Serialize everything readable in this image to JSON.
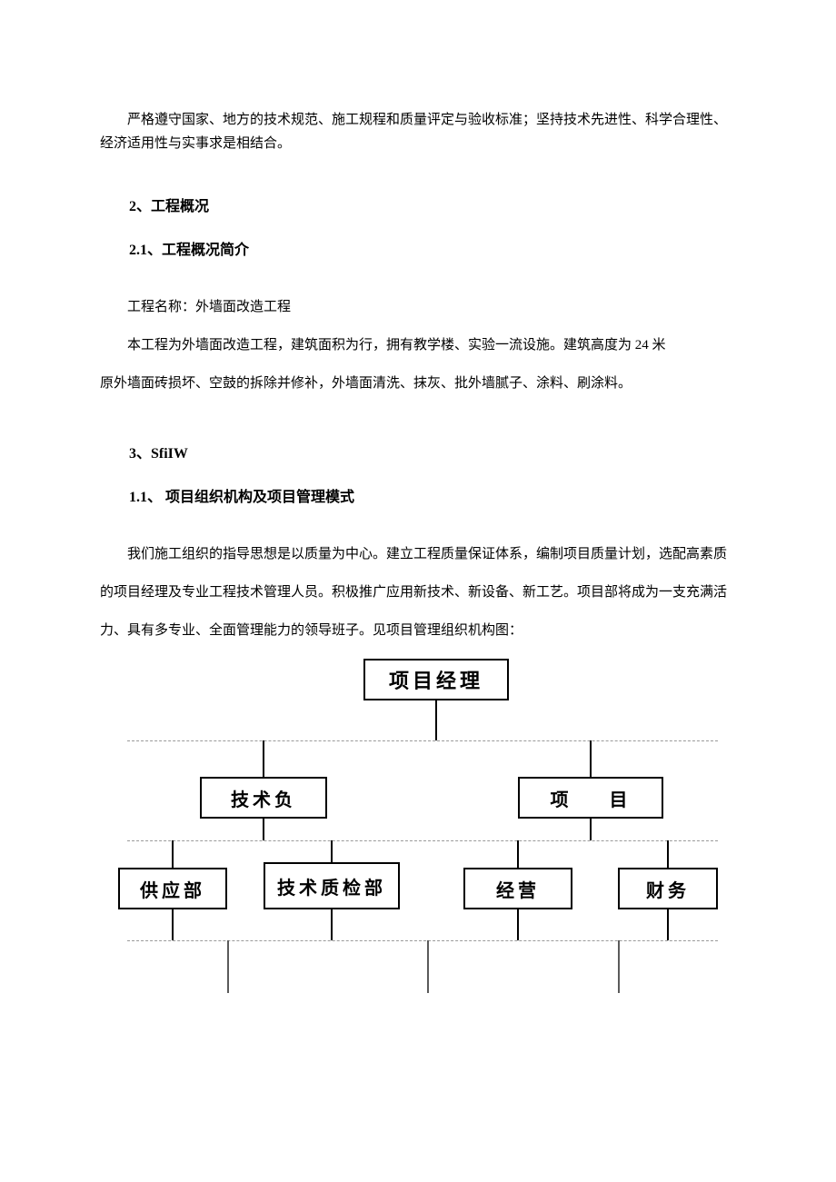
{
  "intro": {
    "p1": "严格遵守国家、地方的技术规范、施工规程和质量评定与验收标准；坚持技术先进性、科学合理性、经济适用性与实事求是相结合。"
  },
  "sec2": {
    "num": "2",
    "title": "、工程概况",
    "sub_num": "2.1",
    "sub_title": "、工程概况简介",
    "p1": "工程名称：外墙面改造工程",
    "p2": "本工程为外墙面改造工程，建筑面积为行，拥有教学楼、实验一流设施。建筑高度为 24 米",
    "p3": "原外墙面砖损坏、空鼓的拆除并修补，外墙面清洗、抹灰、批外墙腻子、涂料、刷涂料。"
  },
  "sec3": {
    "num": "3",
    "title": "、SfiIW",
    "sub_num": "1.1、",
    "sub_title": " 项目组织机构及项目管理模式",
    "p1": "我们施工组织的指导思想是以质量为中心。建立工程质量保证体系，编制项目质量计划，选配高素质的项目经理及专业工程技术管理人员。积极推广应用新技术、新设备、新工艺。项目部将成为一支充满活力、具有多专业、全面管理能力的领导班子。见项目管理组织机构图："
  },
  "org_chart": {
    "type": "tree",
    "node_border_color": "#000000",
    "node_bg_color": "#ffffff",
    "edge_color_solid": "#000000",
    "edge_color_dashed": "#9a9a9a",
    "label_fontsize": 20,
    "nodes": {
      "root": "项目经理",
      "l2a": "技术负",
      "l2b": "项  目",
      "l3a": "供应部",
      "l3b": "技术质检部",
      "l3c": "经营",
      "l3d": "财务"
    }
  }
}
